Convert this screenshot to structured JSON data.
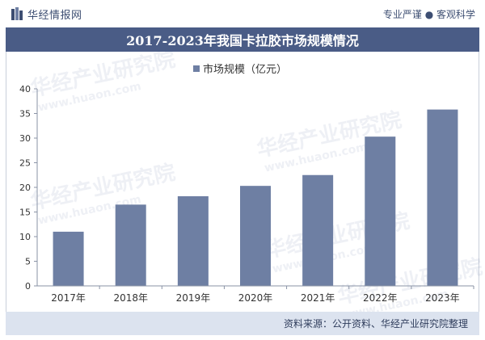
{
  "header": {
    "brand_name": "华经情报网",
    "slogan": "专业严谨 ● 客观科学"
  },
  "title": "2017-2023年我国卡拉胶市场规模情况",
  "watermark": {
    "name": "华经产业研究院",
    "url": "www.huaon.com"
  },
  "source": "资料来源：公开资料、华经产业研究院整理",
  "colors": {
    "bar": "#6e7fa3",
    "title_bg": "#4a5c86",
    "footer_bg": "#dce3ef"
  },
  "chart_data": {
    "type": "bar",
    "categories": [
      "2017年",
      "2018年",
      "2019年",
      "2020年",
      "2021年",
      "2022年",
      "2023年"
    ],
    "series": [
      {
        "name": "市场规模（亿元）",
        "values": [
          11.0,
          16.5,
          18.2,
          20.3,
          22.5,
          30.3,
          35.8
        ]
      }
    ],
    "ylim": [
      0,
      40
    ],
    "yticks": [
      0,
      5,
      10,
      15,
      20,
      25,
      30,
      35,
      40
    ],
    "legend": "top-center",
    "grid": false
  }
}
